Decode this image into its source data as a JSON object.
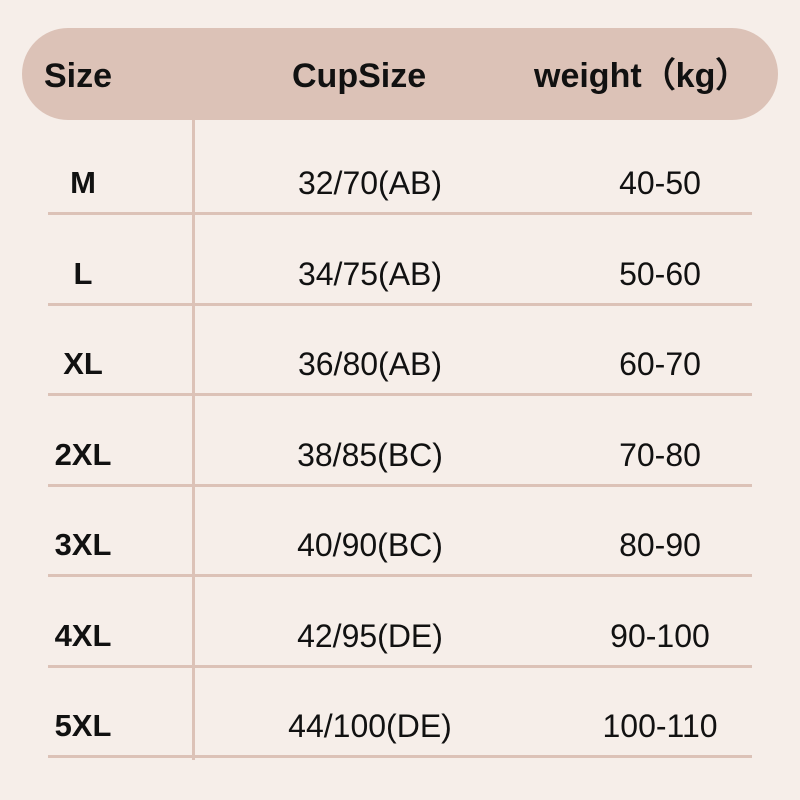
{
  "header": [
    "Size",
    "CupSize",
    "weight（kg）"
  ],
  "table": {
    "rows": [
      [
        "M",
        "32/70(AB)",
        "40-50"
      ],
      [
        "L",
        "34/75(AB)",
        "50-60"
      ],
      [
        "XL",
        "36/80(AB)",
        "60-70"
      ],
      [
        "2XL",
        "38/85(BC)",
        "70-80"
      ],
      [
        "3XL",
        "40/90(BC)",
        "80-90"
      ],
      [
        "4XL",
        "42/95(DE)",
        "90-100"
      ],
      [
        "5XL",
        "44/100(DE)",
        "100-110"
      ]
    ]
  }
}
